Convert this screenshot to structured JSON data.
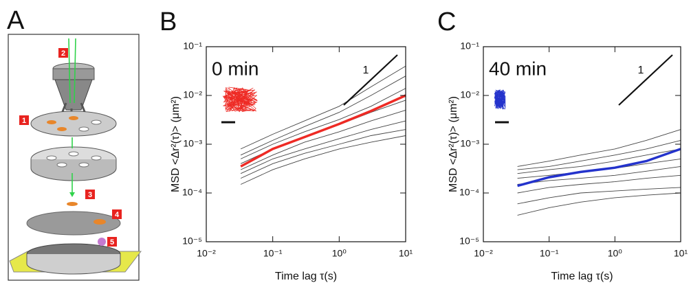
{
  "panel_labels": [
    "A",
    "B",
    "C"
  ],
  "diagram": {
    "labels": [
      "1",
      "2",
      "3",
      "4",
      "5"
    ]
  },
  "chart_data": [
    {
      "type": "line",
      "xscale": "log",
      "yscale": "log",
      "xlabel": "Time lag τ(s)",
      "ylabel": "MSD <Δr²(τ)> (μm²)",
      "annotation": "0 min",
      "slope_label": "1",
      "xlim": [
        0.01,
        10
      ],
      "ylim": [
        1e-05,
        0.1
      ],
      "xticks": [
        {
          "value": 0.01,
          "label": "10⁻²"
        },
        {
          "value": 0.1,
          "label": "10⁻¹"
        },
        {
          "value": 1,
          "label": "10⁰"
        },
        {
          "value": 10,
          "label": "10¹"
        }
      ],
      "yticks": [
        {
          "value": 1e-05,
          "label": "10⁻⁵"
        },
        {
          "value": 0.0001,
          "label": "10⁻⁴"
        },
        {
          "value": 0.001,
          "label": "10⁻³"
        },
        {
          "value": 0.01,
          "label": "10⁻²"
        },
        {
          "value": 0.1,
          "label": "10⁻¹"
        }
      ],
      "x": [
        0.033,
        0.1,
        0.3,
        1,
        3,
        10
      ],
      "series": [
        {
          "color": "#222222",
          "values": [
            0.0008,
            0.0016,
            0.003,
            0.006,
            0.015,
            0.04
          ]
        },
        {
          "color": "#222222",
          "values": [
            0.0006,
            0.0012,
            0.0023,
            0.0045,
            0.01,
            0.025
          ]
        },
        {
          "color": "#222222",
          "values": [
            0.0005,
            0.001,
            0.0018,
            0.0032,
            0.006,
            0.014
          ]
        },
        {
          "color": "#222222",
          "values": [
            0.0004,
            0.0008,
            0.0014,
            0.0025,
            0.0045,
            0.008
          ]
        },
        {
          "color": "#222222",
          "values": [
            0.0003,
            0.0006,
            0.0011,
            0.0018,
            0.003,
            0.005
          ]
        },
        {
          "color": "#222222",
          "values": [
            0.00025,
            0.0005,
            0.0008,
            0.0013,
            0.002,
            0.003
          ]
        },
        {
          "color": "#222222",
          "values": [
            0.0002,
            0.0004,
            0.00065,
            0.001,
            0.0015,
            0.002
          ]
        },
        {
          "color": "#222222",
          "values": [
            0.00015,
            0.0003,
            0.0005,
            0.0008,
            0.0011,
            0.0015
          ]
        },
        {
          "color": "#ee2a24",
          "values": [
            0.00035,
            0.0008,
            0.0014,
            0.0026,
            0.0048,
            0.01
          ]
        }
      ]
    },
    {
      "type": "line",
      "xscale": "log",
      "yscale": "log",
      "xlabel": "Time lag τ(s)",
      "ylabel": "MSD <Δr²(τ)> (μm²)",
      "annotation": "40 min",
      "slope_label": "1",
      "xlim": [
        0.01,
        10
      ],
      "ylim": [
        1e-05,
        0.1
      ],
      "xticks": [
        {
          "value": 0.01,
          "label": "10⁻²"
        },
        {
          "value": 0.1,
          "label": "10⁻¹"
        },
        {
          "value": 1,
          "label": "10⁰"
        },
        {
          "value": 10,
          "label": "10¹"
        }
      ],
      "yticks": [
        {
          "value": 1e-05,
          "label": "10⁻⁵"
        },
        {
          "value": 0.0001,
          "label": "10⁻⁴"
        },
        {
          "value": 0.001,
          "label": "10⁻³"
        },
        {
          "value": 0.01,
          "label": "10⁻²"
        },
        {
          "value": 0.1,
          "label": "10⁻¹"
        }
      ],
      "x": [
        0.033,
        0.1,
        0.3,
        1,
        3,
        10
      ],
      "series": [
        {
          "color": "#222222",
          "values": [
            0.00035,
            0.00045,
            0.0006,
            0.0008,
            0.0012,
            0.002
          ]
        },
        {
          "color": "#222222",
          "values": [
            0.0003,
            0.00035,
            0.00045,
            0.0006,
            0.0008,
            0.0012
          ]
        },
        {
          "color": "#222222",
          "values": [
            0.00025,
            0.0003,
            0.00035,
            0.00045,
            0.0006,
            0.0008
          ]
        },
        {
          "color": "#222222",
          "values": [
            0.0002,
            0.00023,
            0.00027,
            0.00032,
            0.0004,
            0.0005
          ]
        },
        {
          "color": "#222222",
          "values": [
            0.00015,
            0.00018,
            0.0002,
            0.00023,
            0.00028,
            0.00035
          ]
        },
        {
          "color": "#222222",
          "values": [
            0.0001,
            0.00013,
            0.00015,
            0.00017,
            0.0002,
            0.00023
          ]
        },
        {
          "color": "#222222",
          "values": [
            6e-05,
            8e-05,
            0.0001,
            0.00011,
            0.00012,
            0.00013
          ]
        },
        {
          "color": "#222222",
          "values": [
            3.5e-05,
            5e-05,
            6.5e-05,
            8e-05,
            9e-05,
            0.0001
          ]
        },
        {
          "color": "#2433cc",
          "values": [
            0.00014,
            0.00021,
            0.00027,
            0.00033,
            0.00045,
            0.0008
          ]
        }
      ]
    }
  ]
}
